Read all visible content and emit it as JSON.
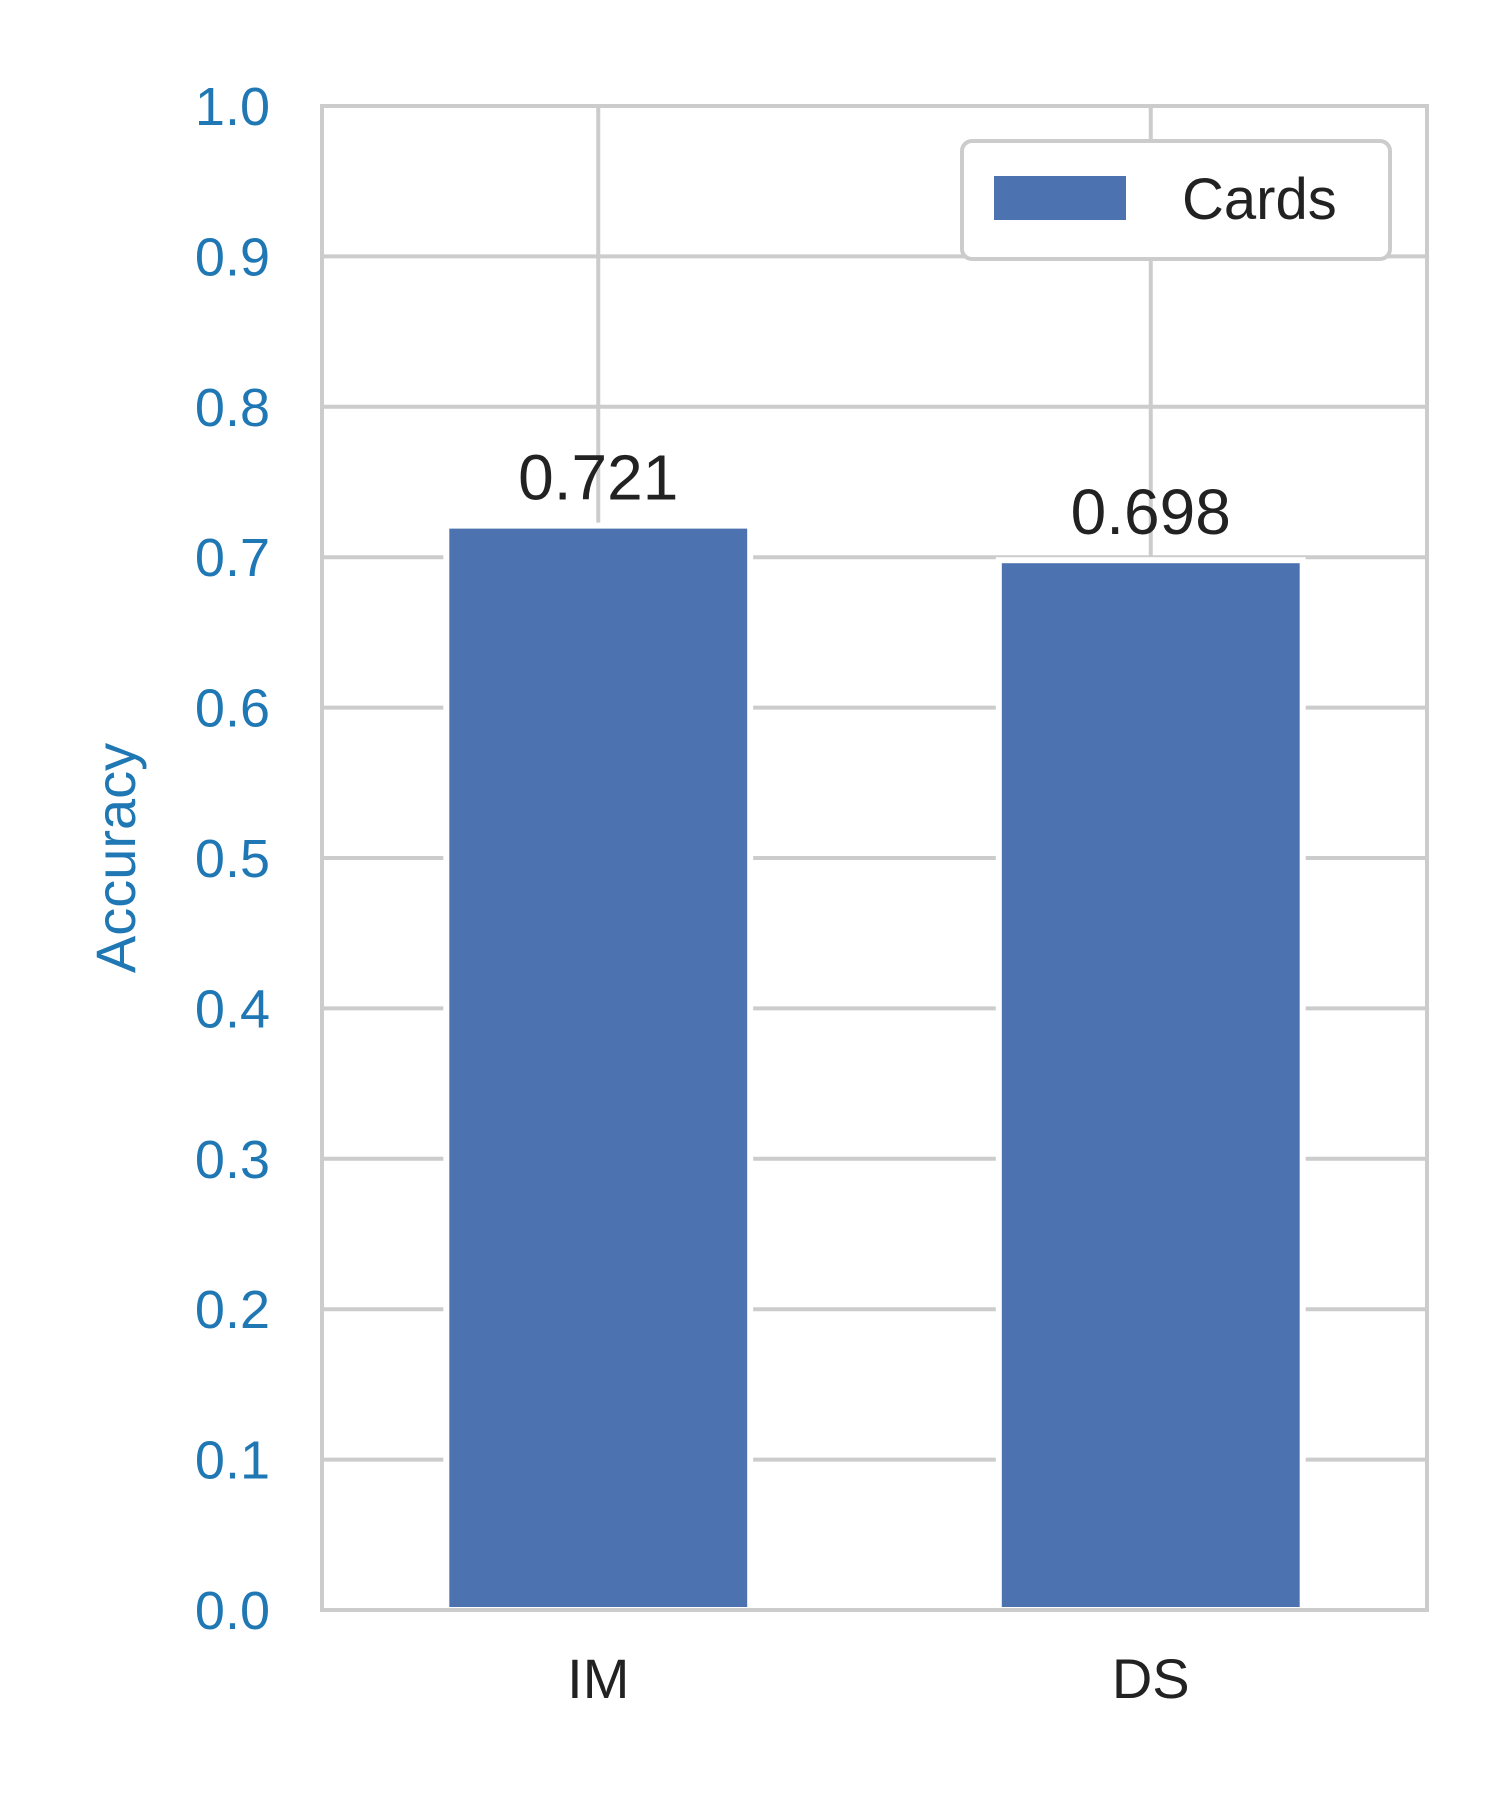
{
  "chart_data": {
    "type": "bar",
    "categories": [
      "IM",
      "DS"
    ],
    "series": [
      {
        "name": "Cards",
        "values": [
          0.721,
          0.698
        ]
      }
    ],
    "data_labels": [
      "0.721",
      "0.698"
    ],
    "ylabel": "Accuracy",
    "ylim": [
      0.0,
      1.0
    ],
    "yticks": [
      0.0,
      0.1,
      0.2,
      0.3,
      0.4,
      0.5,
      0.6,
      0.7,
      0.8,
      0.9,
      1.0
    ],
    "ytick_labels": [
      "0.0",
      "0.1",
      "0.2",
      "0.3",
      "0.4",
      "0.5",
      "0.6",
      "0.7",
      "0.8",
      "0.9",
      "1.0"
    ],
    "grid": true,
    "legend_position": "top-right",
    "colors": {
      "bar": "#4c72b0",
      "axis_text": "#1f77b4",
      "grid": "#cccccc",
      "text": "#222222"
    }
  }
}
